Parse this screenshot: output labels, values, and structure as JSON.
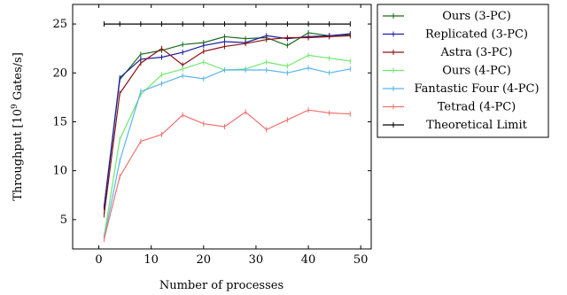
{
  "chart_data": {
    "type": "line",
    "xlabel": "Number of processes",
    "ylabel_main": "Throughput [10",
    "ylabel_sup": "9",
    "ylabel_tail": " Gates/s]",
    "xlim": [
      -5,
      52
    ],
    "ylim": [
      2,
      27
    ],
    "xticks": [
      0,
      10,
      20,
      30,
      40,
      50
    ],
    "yticks": [
      5,
      10,
      15,
      20,
      25
    ],
    "legend_position": "outside-right",
    "series": [
      {
        "name": "Ours (3-PC)",
        "color": "#1a6b1a",
        "x": [
          1,
          4,
          8,
          12,
          16,
          20,
          24,
          28,
          32,
          36,
          40,
          44,
          48
        ],
        "y": [
          6.2,
          19.3,
          21.9,
          22.3,
          22.9,
          23.1,
          23.7,
          23.5,
          23.6,
          22.8,
          24.1,
          23.8,
          23.9
        ]
      },
      {
        "name": "Replicated (3-PC)",
        "color": "#1c1ca6",
        "x": [
          1,
          4,
          8,
          12,
          16,
          20,
          24,
          28,
          32,
          36,
          40,
          44,
          48
        ],
        "y": [
          6.3,
          19.5,
          21.4,
          21.6,
          22.1,
          22.8,
          23.2,
          23.1,
          23.8,
          23.5,
          23.7,
          23.8,
          24.0
        ]
      },
      {
        "name": "Astra (3-PC)",
        "color": "#8b1010",
        "x": [
          1,
          4,
          8,
          12,
          16,
          20,
          24,
          28,
          32,
          36,
          40,
          44,
          48
        ],
        "y": [
          5.5,
          17.9,
          21.0,
          22.5,
          20.8,
          22.2,
          22.7,
          23.0,
          23.4,
          23.6,
          23.6,
          23.7,
          23.8
        ]
      },
      {
        "name": "Ours (4-PC)",
        "color": "#6ee86e",
        "x": [
          1,
          4,
          8,
          12,
          16,
          20,
          24,
          28,
          32,
          36,
          40,
          44,
          48
        ],
        "y": [
          3.3,
          13.2,
          17.8,
          19.8,
          20.4,
          21.1,
          20.3,
          20.4,
          21.1,
          20.7,
          21.8,
          21.5,
          21.2
        ]
      },
      {
        "name": "Fantastic Four (4-PC)",
        "color": "#5ab4f0",
        "x": [
          1,
          4,
          8,
          12,
          16,
          20,
          24,
          28,
          32,
          36,
          40,
          44,
          48
        ],
        "y": [
          3.1,
          11.0,
          18.1,
          18.9,
          19.7,
          19.4,
          20.3,
          20.3,
          20.3,
          20.0,
          20.5,
          20.0,
          20.4
        ]
      },
      {
        "name": "Tetrad (4-PC)",
        "color": "#f07070",
        "x": [
          1,
          4,
          8,
          12,
          16,
          20,
          24,
          28,
          32,
          36,
          40,
          44,
          48
        ],
        "y": [
          3.0,
          9.4,
          13.0,
          13.7,
          15.7,
          14.8,
          14.5,
          16.0,
          14.2,
          15.2,
          16.2,
          15.9,
          15.8
        ]
      },
      {
        "name": "Theoretical Limit",
        "color": "#000000",
        "x": [
          1,
          4,
          8,
          12,
          16,
          20,
          24,
          28,
          32,
          36,
          40,
          44,
          48
        ],
        "y": [
          25,
          25,
          25,
          25,
          25,
          25,
          25,
          25,
          25,
          25,
          25,
          25,
          25
        ]
      }
    ]
  }
}
